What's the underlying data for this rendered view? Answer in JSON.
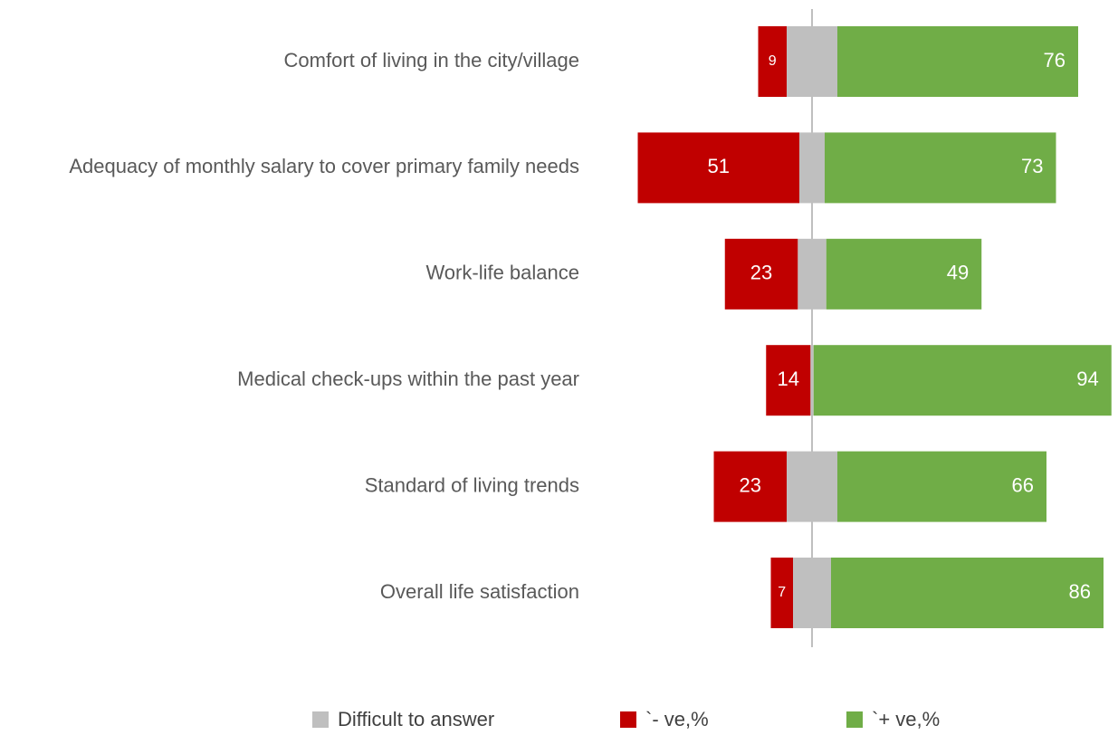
{
  "chart_data": {
    "type": "diverging_bar",
    "categories": [
      "Comfort of living in the city/village",
      "Adequacy of monthly salary to cover primary family needs",
      "Work-life balance",
      "Medical check-ups within the past year",
      "Standard of living trends",
      "Overall life satisfaction"
    ],
    "series": [
      {
        "name": "Difficult to answer",
        "color": "#bfbfbf",
        "values": [
          16,
          8,
          9,
          1,
          16,
          12
        ]
      },
      {
        "name": "`- ve,%",
        "color": "#c00000",
        "values": [
          9,
          51,
          23,
          14,
          23,
          7
        ]
      },
      {
        "name": "`+ ve,%",
        "color": "#70ad47",
        "values": [
          76,
          73,
          49,
          94,
          66,
          86
        ]
      }
    ]
  }
}
